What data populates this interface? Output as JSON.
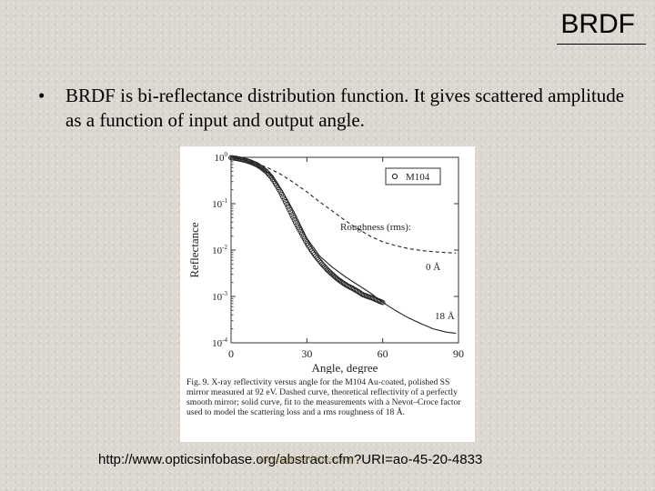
{
  "slide": {
    "title": "BRDF",
    "bullet_symbol": "•",
    "bullet_text": "BRDF is bi-reflectance distribution function. It gives scattered amplitude as a function of input and output angle.",
    "source_url": "http://www.opticsinfobase.org/abstract.cfm?URI=ao-45-20-4833",
    "watermark": "www.opticsinfobase.org"
  },
  "figure": {
    "caption": "Fig. 9. X-ray reflectivity versus angle for the M104 Au-coated, polished SS mirror measured at 92 eV. Dashed curve, theoretical reflectivity of a perfectly smooth mirror; solid curve, fit to the measurements with a Nevot–Croce factor used to model the scattering loss and a rms roughness of 18 Å.",
    "legend_marker": "o",
    "legend_label": "M104",
    "annotations": {
      "roughness": "Roughness (rms):",
      "zero": "0 Å",
      "eighteen": "18 Å"
    }
  },
  "chart_data": {
    "type": "line",
    "xlabel": "Angle, degree",
    "ylabel": "Reflectance",
    "xlim": [
      0,
      90
    ],
    "ylim": [
      0.0001,
      1
    ],
    "y_scale": "log",
    "x_ticks": [
      "0",
      "30",
      "60",
      "90"
    ],
    "y_ticks": [
      {
        "base": "10",
        "exp": "0"
      },
      {
        "base": "10",
        "exp": "-1"
      },
      {
        "base": "10",
        "exp": "-2"
      },
      {
        "base": "10",
        "exp": "-3"
      },
      {
        "base": "10",
        "exp": "-4"
      }
    ],
    "y_tick_values": [
      1,
      0.1,
      0.01,
      0.001,
      0.0001
    ],
    "x_tick_values": [
      0,
      30,
      60,
      90
    ],
    "legend": "top-right",
    "grid": false,
    "series": [
      {
        "name": "M104",
        "style": "markers",
        "x": [
          0,
          2,
          4,
          6,
          8,
          10,
          12,
          14,
          16,
          18,
          20,
          22,
          24,
          26,
          28,
          30,
          32,
          34,
          36,
          38,
          40,
          42,
          44,
          46,
          48,
          50,
          52,
          54,
          56,
          58,
          60
        ],
        "y": [
          0.98,
          0.95,
          0.9,
          0.85,
          0.78,
          0.7,
          0.6,
          0.49,
          0.37,
          0.25,
          0.16,
          0.097,
          0.058,
          0.035,
          0.022,
          0.014,
          0.0095,
          0.0068,
          0.005,
          0.0038,
          0.003,
          0.0024,
          0.002,
          0.0017,
          0.0015,
          0.0013,
          0.0011,
          0.001,
          0.00092,
          0.00082,
          0.00074
        ]
      },
      {
        "name": "0 Å",
        "style": "dashed",
        "x": [
          0,
          5,
          10,
          15,
          20,
          25,
          30,
          35,
          40,
          45,
          50,
          55,
          60,
          65,
          70,
          75,
          80,
          85,
          89
        ],
        "y": [
          1,
          0.88,
          0.74,
          0.58,
          0.42,
          0.28,
          0.18,
          0.11,
          0.07,
          0.044,
          0.029,
          0.02,
          0.015,
          0.0125,
          0.0108,
          0.0098,
          0.0092,
          0.0088,
          0.0086
        ]
      },
      {
        "name": "18 Å",
        "style": "solid",
        "x": [
          0,
          5,
          10,
          15,
          20,
          25,
          30,
          35,
          40,
          45,
          50,
          55,
          60,
          65,
          70,
          75,
          80,
          85,
          89
        ],
        "y": [
          1,
          0.88,
          0.7,
          0.45,
          0.2,
          0.065,
          0.018,
          0.0075,
          0.0043,
          0.0027,
          0.0018,
          0.0012,
          0.00075,
          0.0005,
          0.00035,
          0.00026,
          0.0002,
          0.00017,
          0.00016
        ]
      }
    ]
  }
}
